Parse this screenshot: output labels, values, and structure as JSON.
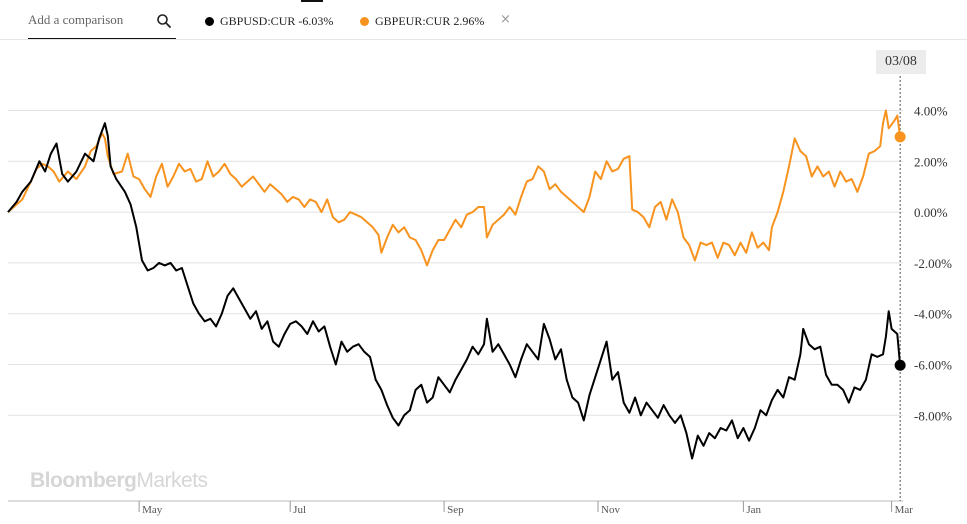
{
  "search": {
    "placeholder": "Add a comparison"
  },
  "legend": [
    {
      "label": "GBPUSD:CUR -6.03%",
      "color": "#000000"
    },
    {
      "label": "GBPEUR:CUR 2.96%",
      "color": "#f7931e"
    }
  ],
  "remove_label": "×",
  "date_badge": "03/08",
  "watermark": {
    "bold": "Bloomberg",
    "light": "Markets"
  },
  "chart_data": {
    "type": "line",
    "title": "",
    "xlabel": "",
    "ylabel": "",
    "ylim": [
      -11.8,
      6.0
    ],
    "yticks": [
      4,
      2,
      0,
      -2,
      -4,
      -6,
      -8
    ],
    "ytick_labels": [
      "4.00%",
      "2.00%",
      "0.00%",
      "-2.00%",
      "-4.00%",
      "-6.00%",
      "-8.00%"
    ],
    "xlim": [
      0,
      314
    ],
    "month_ticks": [
      {
        "label": "May",
        "x": 46
      },
      {
        "label": "Jul",
        "x": 99
      },
      {
        "label": "Sep",
        "x": 153
      },
      {
        "label": "Nov",
        "x": 207
      },
      {
        "label": "Jan",
        "x": 258
      },
      {
        "label": "Mar",
        "x": 310
      }
    ],
    "marker_x": 313,
    "series": [
      {
        "name": "GBPUSD:CUR",
        "color": "#000000",
        "end_value": -6.03,
        "points": [
          [
            0,
            0
          ],
          [
            3,
            0.4
          ],
          [
            5,
            0.8
          ],
          [
            8,
            1.2
          ],
          [
            11,
            2.0
          ],
          [
            13,
            1.6
          ],
          [
            15,
            2.3
          ],
          [
            17,
            2.7
          ],
          [
            19,
            1.5
          ],
          [
            21,
            1.2
          ],
          [
            24,
            1.6
          ],
          [
            27,
            2.3
          ],
          [
            30,
            2.0
          ],
          [
            32,
            2.9
          ],
          [
            34,
            3.5
          ],
          [
            35,
            3.0
          ],
          [
            36,
            1.8
          ],
          [
            38,
            1.3
          ],
          [
            41,
            0.8
          ],
          [
            43,
            0.3
          ],
          [
            45,
            -0.6
          ],
          [
            47,
            -1.9
          ],
          [
            49,
            -2.3
          ],
          [
            51,
            -2.2
          ],
          [
            53,
            -2.0
          ],
          [
            55,
            -2.1
          ],
          [
            57,
            -2.0
          ],
          [
            59,
            -2.3
          ],
          [
            61,
            -2.2
          ],
          [
            63,
            -2.9
          ],
          [
            65,
            -3.6
          ],
          [
            67,
            -4.0
          ],
          [
            69,
            -4.3
          ],
          [
            71,
            -4.2
          ],
          [
            73,
            -4.5
          ],
          [
            75,
            -4.0
          ],
          [
            77,
            -3.3
          ],
          [
            79,
            -3.0
          ],
          [
            81,
            -3.4
          ],
          [
            83,
            -3.8
          ],
          [
            85,
            -4.2
          ],
          [
            87,
            -3.9
          ],
          [
            89,
            -4.6
          ],
          [
            91,
            -4.3
          ],
          [
            93,
            -5.1
          ],
          [
            95,
            -5.3
          ],
          [
            97,
            -4.8
          ],
          [
            99,
            -4.4
          ],
          [
            101,
            -4.3
          ],
          [
            103,
            -4.5
          ],
          [
            105,
            -4.8
          ],
          [
            107,
            -4.3
          ],
          [
            109,
            -4.7
          ],
          [
            111,
            -4.5
          ],
          [
            113,
            -5.3
          ],
          [
            115,
            -6.0
          ],
          [
            117,
            -5.1
          ],
          [
            119,
            -5.5
          ],
          [
            121,
            -5.3
          ],
          [
            123,
            -5.2
          ],
          [
            125,
            -5.5
          ],
          [
            127,
            -5.7
          ],
          [
            129,
            -6.6
          ],
          [
            131,
            -7.0
          ],
          [
            133,
            -7.6
          ],
          [
            135,
            -8.1
          ],
          [
            137,
            -8.4
          ],
          [
            139,
            -8.0
          ],
          [
            141,
            -7.8
          ],
          [
            143,
            -7.0
          ],
          [
            145,
            -6.8
          ],
          [
            147,
            -7.5
          ],
          [
            149,
            -7.3
          ],
          [
            151,
            -6.5
          ],
          [
            153,
            -6.8
          ],
          [
            155,
            -7.1
          ],
          [
            157,
            -6.6
          ],
          [
            159,
            -6.2
          ],
          [
            161,
            -5.8
          ],
          [
            163,
            -5.3
          ],
          [
            165,
            -5.6
          ],
          [
            167,
            -5.2
          ],
          [
            168,
            -4.2
          ],
          [
            170,
            -5.5
          ],
          [
            172,
            -5.2
          ],
          [
            174,
            -5.6
          ],
          [
            176,
            -6.0
          ],
          [
            178,
            -6.5
          ],
          [
            180,
            -5.8
          ],
          [
            182,
            -5.2
          ],
          [
            184,
            -5.5
          ],
          [
            186,
            -5.8
          ],
          [
            188,
            -4.4
          ],
          [
            190,
            -5.0
          ],
          [
            192,
            -5.8
          ],
          [
            194,
            -5.4
          ],
          [
            196,
            -6.6
          ],
          [
            198,
            -7.3
          ],
          [
            200,
            -7.5
          ],
          [
            202,
            -8.2
          ],
          [
            204,
            -7.2
          ],
          [
            206,
            -6.5
          ],
          [
            208,
            -5.8
          ],
          [
            210,
            -5.1
          ],
          [
            212,
            -6.6
          ],
          [
            214,
            -6.3
          ],
          [
            216,
            -7.5
          ],
          [
            218,
            -7.9
          ],
          [
            220,
            -7.3
          ],
          [
            222,
            -8.0
          ],
          [
            224,
            -7.5
          ],
          [
            226,
            -7.8
          ],
          [
            228,
            -8.1
          ],
          [
            230,
            -7.6
          ],
          [
            232,
            -8.0
          ],
          [
            234,
            -8.3
          ],
          [
            236,
            -8.0
          ],
          [
            238,
            -8.7
          ],
          [
            240,
            -9.7
          ],
          [
            242,
            -8.8
          ],
          [
            244,
            -9.2
          ],
          [
            246,
            -8.7
          ],
          [
            248,
            -8.9
          ],
          [
            250,
            -8.5
          ],
          [
            252,
            -8.6
          ],
          [
            254,
            -8.2
          ],
          [
            256,
            -8.9
          ],
          [
            258,
            -8.5
          ],
          [
            260,
            -9.0
          ],
          [
            262,
            -8.5
          ],
          [
            264,
            -7.8
          ],
          [
            266,
            -8.0
          ],
          [
            268,
            -7.4
          ],
          [
            270,
            -7.0
          ],
          [
            272,
            -7.3
          ],
          [
            274,
            -6.5
          ],
          [
            276,
            -6.6
          ],
          [
            278,
            -5.6
          ],
          [
            279,
            -4.6
          ],
          [
            281,
            -5.2
          ],
          [
            283,
            -5.4
          ],
          [
            285,
            -5.3
          ],
          [
            287,
            -6.4
          ],
          [
            289,
            -6.8
          ],
          [
            291,
            -6.8
          ],
          [
            293,
            -7.0
          ],
          [
            295,
            -7.5
          ],
          [
            297,
            -6.9
          ],
          [
            299,
            -7.0
          ],
          [
            301,
            -6.6
          ],
          [
            303,
            -5.6
          ],
          [
            305,
            -5.7
          ],
          [
            307,
            -5.6
          ],
          [
            308,
            -4.9
          ],
          [
            309,
            -3.9
          ],
          [
            310,
            -4.6
          ],
          [
            312,
            -4.8
          ],
          [
            313,
            -6.03
          ]
        ]
      },
      {
        "name": "GBPEUR:CUR",
        "color": "#f7931e",
        "end_value": 2.96,
        "points": [
          [
            0,
            0
          ],
          [
            3,
            0.3
          ],
          [
            5,
            0.5
          ],
          [
            8,
            1.2
          ],
          [
            10,
            1.7
          ],
          [
            12,
            1.9
          ],
          [
            14,
            1.8
          ],
          [
            16,
            1.6
          ],
          [
            18,
            1.2
          ],
          [
            21,
            1.6
          ],
          [
            24,
            1.3
          ],
          [
            27,
            1.8
          ],
          [
            29,
            2.4
          ],
          [
            31,
            2.6
          ],
          [
            33,
            3.1
          ],
          [
            34,
            2.9
          ],
          [
            35,
            2.2
          ],
          [
            37,
            1.5
          ],
          [
            40,
            1.6
          ],
          [
            42,
            2.3
          ],
          [
            44,
            1.4
          ],
          [
            46,
            1.3
          ],
          [
            48,
            0.9
          ],
          [
            50,
            0.6
          ],
          [
            52,
            1.4
          ],
          [
            54,
            1.9
          ],
          [
            56,
            1.0
          ],
          [
            58,
            1.4
          ],
          [
            60,
            1.9
          ],
          [
            62,
            1.6
          ],
          [
            64,
            1.7
          ],
          [
            66,
            1.2
          ],
          [
            68,
            1.3
          ],
          [
            70,
            2.0
          ],
          [
            72,
            1.4
          ],
          [
            74,
            1.6
          ],
          [
            76,
            1.9
          ],
          [
            78,
            1.5
          ],
          [
            80,
            1.3
          ],
          [
            82,
            1.0
          ],
          [
            84,
            1.2
          ],
          [
            86,
            1.4
          ],
          [
            88,
            1.1
          ],
          [
            90,
            0.8
          ],
          [
            92,
            1.1
          ],
          [
            94,
            0.9
          ],
          [
            96,
            0.7
          ],
          [
            98,
            0.4
          ],
          [
            100,
            0.6
          ],
          [
            102,
            0.5
          ],
          [
            104,
            0.2
          ],
          [
            106,
            0.5
          ],
          [
            108,
            0.4
          ],
          [
            110,
            0.0
          ],
          [
            112,
            0.5
          ],
          [
            114,
            -0.2
          ],
          [
            116,
            -0.4
          ],
          [
            118,
            -0.3
          ],
          [
            120,
            0.0
          ],
          [
            122,
            -0.1
          ],
          [
            124,
            -0.2
          ],
          [
            126,
            -0.4
          ],
          [
            128,
            -0.6
          ],
          [
            130,
            -0.9
          ],
          [
            131,
            -1.6
          ],
          [
            133,
            -1.0
          ],
          [
            135,
            -0.5
          ],
          [
            137,
            -0.8
          ],
          [
            139,
            -0.6
          ],
          [
            141,
            -1.0
          ],
          [
            143,
            -1.1
          ],
          [
            145,
            -1.5
          ],
          [
            147,
            -2.1
          ],
          [
            149,
            -1.5
          ],
          [
            151,
            -1.1
          ],
          [
            153,
            -1.1
          ],
          [
            155,
            -0.7
          ],
          [
            157,
            -0.3
          ],
          [
            159,
            -0.6
          ],
          [
            161,
            -0.1
          ],
          [
            163,
            0.0
          ],
          [
            165,
            0.2
          ],
          [
            167,
            0.2
          ],
          [
            168,
            -1.0
          ],
          [
            170,
            -0.5
          ],
          [
            172,
            -0.3
          ],
          [
            174,
            -0.1
          ],
          [
            176,
            0.2
          ],
          [
            178,
            -0.1
          ],
          [
            180,
            0.6
          ],
          [
            182,
            1.2
          ],
          [
            184,
            1.3
          ],
          [
            186,
            1.8
          ],
          [
            188,
            1.6
          ],
          [
            190,
            0.9
          ],
          [
            192,
            1.1
          ],
          [
            194,
            0.8
          ],
          [
            196,
            0.6
          ],
          [
            198,
            0.4
          ],
          [
            200,
            0.2
          ],
          [
            202,
            0.0
          ],
          [
            204,
            0.6
          ],
          [
            206,
            1.6
          ],
          [
            208,
            1.3
          ],
          [
            210,
            2.0
          ],
          [
            212,
            1.6
          ],
          [
            214,
            1.7
          ],
          [
            216,
            2.1
          ],
          [
            218,
            2.2
          ],
          [
            219,
            0.1
          ],
          [
            221,
            0.0
          ],
          [
            223,
            -0.2
          ],
          [
            225,
            -0.6
          ],
          [
            227,
            0.2
          ],
          [
            229,
            0.4
          ],
          [
            231,
            -0.3
          ],
          [
            233,
            0.5
          ],
          [
            235,
            0.0
          ],
          [
            237,
            -1.0
          ],
          [
            239,
            -1.3
          ],
          [
            241,
            -1.9
          ],
          [
            243,
            -1.2
          ],
          [
            245,
            -1.3
          ],
          [
            247,
            -1.2
          ],
          [
            249,
            -1.8
          ],
          [
            251,
            -1.2
          ],
          [
            253,
            -1.3
          ],
          [
            255,
            -1.7
          ],
          [
            257,
            -1.2
          ],
          [
            259,
            -1.6
          ],
          [
            261,
            -0.8
          ],
          [
            263,
            -1.4
          ],
          [
            265,
            -1.2
          ],
          [
            267,
            -1.5
          ],
          [
            268,
            -0.6
          ],
          [
            270,
            0.0
          ],
          [
            272,
            0.8
          ],
          [
            274,
            1.8
          ],
          [
            276,
            2.9
          ],
          [
            278,
            2.4
          ],
          [
            280,
            2.2
          ],
          [
            282,
            1.4
          ],
          [
            284,
            1.8
          ],
          [
            286,
            1.4
          ],
          [
            288,
            1.6
          ],
          [
            290,
            1.0
          ],
          [
            292,
            1.6
          ],
          [
            294,
            1.2
          ],
          [
            296,
            1.3
          ],
          [
            298,
            0.8
          ],
          [
            300,
            1.4
          ],
          [
            302,
            2.3
          ],
          [
            304,
            2.4
          ],
          [
            306,
            2.6
          ],
          [
            307,
            3.5
          ],
          [
            308,
            4.0
          ],
          [
            309,
            3.3
          ],
          [
            311,
            3.6
          ],
          [
            312,
            3.8
          ],
          [
            313,
            2.96
          ]
        ]
      }
    ]
  }
}
